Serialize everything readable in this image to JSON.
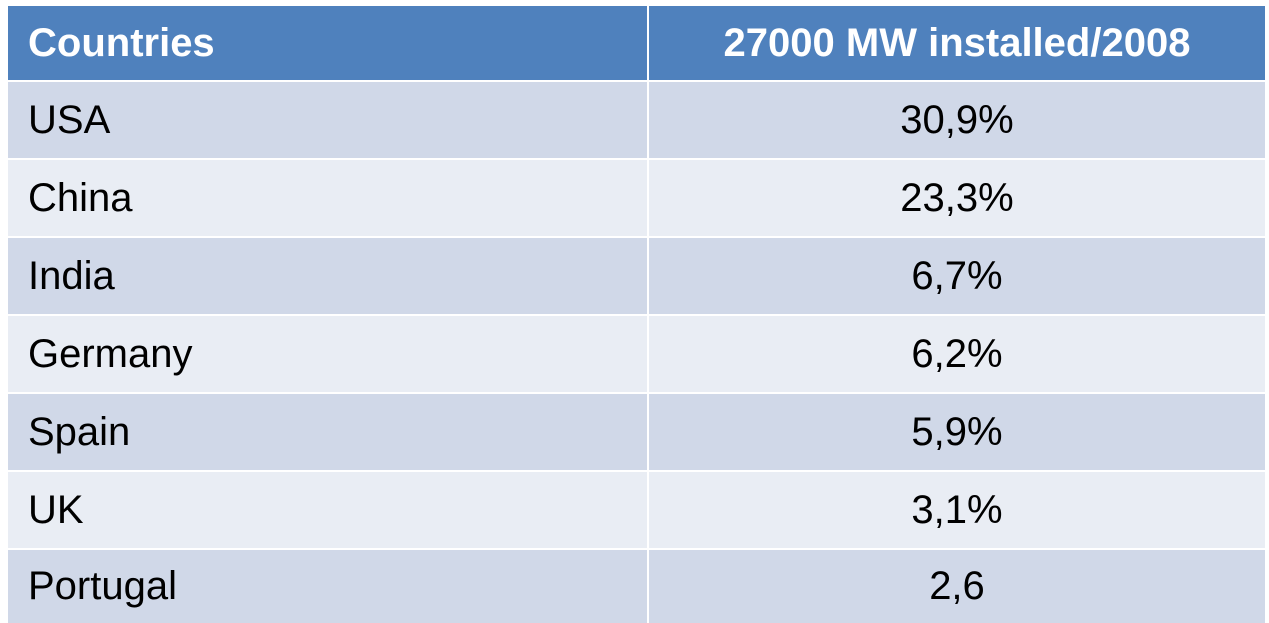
{
  "table": {
    "header": [
      "Countries",
      "27000 MW installed/2008"
    ],
    "rows": [
      [
        "USA",
        "30,9%"
      ],
      [
        "China",
        "23,3%"
      ],
      [
        "India",
        "6,7%"
      ],
      [
        "Germany",
        "6,2%"
      ],
      [
        "Spain",
        "5,9%"
      ],
      [
        "UK",
        "3,1%"
      ],
      [
        "Portugal",
        "2,6"
      ]
    ]
  }
}
